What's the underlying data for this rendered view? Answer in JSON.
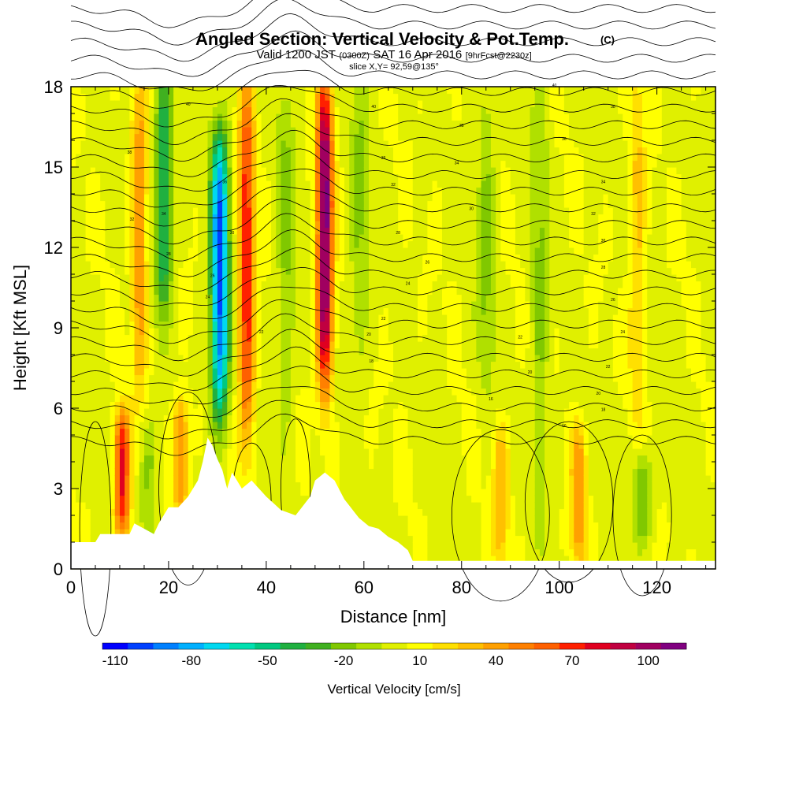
{
  "chart_data": {
    "type": "heatmap",
    "title": "Angled Section: Vertical Velocity & Pot.Temp.",
    "title_suffix": "(C)",
    "subtitle": {
      "valid": "Valid 1200 JST",
      "utc": "(0300Z)",
      "date": "SAT 16 Apr 2016",
      "fcst": "[9hrFcst@2230z]"
    },
    "slice": "slice X,Y= 92,59@135°",
    "xlabel": "Distance [nm]",
    "ylabel": "Height [Kft MSL]",
    "xlim": [
      0,
      132
    ],
    "ylim": [
      0,
      18
    ],
    "x_ticks": [
      "0",
      "20",
      "40",
      "60",
      "80",
      "100",
      "120"
    ],
    "y_ticks": [
      "0",
      "3",
      "6",
      "9",
      "12",
      "15",
      "18"
    ],
    "colorbar": {
      "label": "Vertical Velocity [cm/s]",
      "tick_labels": [
        "-110",
        "-80",
        "-50",
        "-20",
        "10",
        "40",
        "70",
        "100"
      ],
      "min": -115,
      "max": 115,
      "step": 10,
      "colors": [
        "#0000ff",
        "#0040ff",
        "#0080ff",
        "#00b0ff",
        "#00d8f0",
        "#00e0b0",
        "#00c880",
        "#20b040",
        "#40b020",
        "#80c800",
        "#b0e000",
        "#e0f000",
        "#ffff00",
        "#ffe000",
        "#ffc000",
        "#ffa000",
        "#ff8000",
        "#ff6000",
        "#ff2000",
        "#e00020",
        "#c00040",
        "#a00060",
        "#800080"
      ]
    },
    "updrafts": [
      {
        "x": 10.5,
        "z0": 1.5,
        "z1": 5.5,
        "value": 75
      },
      {
        "x": 14,
        "z0": 7,
        "z1": 18,
        "value": 40
      },
      {
        "x": 22.5,
        "z0": 2.5,
        "z1": 6,
        "value": 45
      },
      {
        "x": 36,
        "z0": 5,
        "z1": 18,
        "value": 70
      },
      {
        "x": 52,
        "z0": 7,
        "z1": 18,
        "value": 110
      },
      {
        "x": 88,
        "z0": 0.5,
        "z1": 5,
        "value": 30
      },
      {
        "x": 104,
        "z0": 0.5,
        "z1": 5,
        "value": 40
      },
      {
        "x": 116,
        "z0": 6,
        "z1": 18,
        "value": 25
      }
    ],
    "downdrafts": [
      {
        "x": 19,
        "z0": 10,
        "z1": 18,
        "value": -50
      },
      {
        "x": 30.5,
        "z0": 6,
        "z1": 16,
        "value": -100
      },
      {
        "x": 16,
        "z0": 1.5,
        "z1": 5,
        "value": -20
      },
      {
        "x": 44,
        "z0": 6,
        "z1": 18,
        "value": -20
      },
      {
        "x": 59,
        "z0": 8,
        "z1": 18,
        "value": -20
      },
      {
        "x": 85,
        "z0": 7,
        "z1": 18,
        "value": -20
      },
      {
        "x": 96,
        "z0": 3,
        "z1": 18,
        "value": -20
      },
      {
        "x": 117,
        "z0": 1.5,
        "z1": 4,
        "value": -30
      }
    ],
    "contour_labels": [
      {
        "x": 24,
        "z": 17.3,
        "text": "40"
      },
      {
        "x": 12,
        "z": 15.5,
        "text": "38"
      },
      {
        "x": 31.5,
        "z": 14.4,
        "text": "36"
      },
      {
        "x": 19,
        "z": 13.2,
        "text": "34"
      },
      {
        "x": 12.5,
        "z": 13.0,
        "text": "32"
      },
      {
        "x": 33,
        "z": 12.5,
        "text": "30"
      },
      {
        "x": 20,
        "z": 11.7,
        "text": "28"
      },
      {
        "x": 29,
        "z": 10.9,
        "text": "26"
      },
      {
        "x": 28,
        "z": 10.1,
        "text": "24"
      },
      {
        "x": 39,
        "z": 8.8,
        "text": "22"
      },
      {
        "x": 62,
        "z": 17.2,
        "text": "40"
      },
      {
        "x": 80,
        "z": 16.5,
        "text": "38"
      },
      {
        "x": 64,
        "z": 15.3,
        "text": "36"
      },
      {
        "x": 79,
        "z": 15.1,
        "text": "34"
      },
      {
        "x": 66,
        "z": 14.3,
        "text": "32"
      },
      {
        "x": 82,
        "z": 13.4,
        "text": "30"
      },
      {
        "x": 67,
        "z": 12.5,
        "text": "28"
      },
      {
        "x": 73,
        "z": 11.4,
        "text": "26"
      },
      {
        "x": 69,
        "z": 10.6,
        "text": "24"
      },
      {
        "x": 64,
        "z": 9.3,
        "text": "22"
      },
      {
        "x": 61,
        "z": 8.7,
        "text": "20"
      },
      {
        "x": 61.5,
        "z": 7.7,
        "text": "18"
      },
      {
        "x": 86,
        "z": 6.3,
        "text": "16"
      },
      {
        "x": 99,
        "z": 18.0,
        "text": "40"
      },
      {
        "x": 111,
        "z": 17.2,
        "text": "38"
      },
      {
        "x": 101,
        "z": 16.0,
        "text": "36"
      },
      {
        "x": 109,
        "z": 14.4,
        "text": "34"
      },
      {
        "x": 107,
        "z": 13.2,
        "text": "32"
      },
      {
        "x": 109,
        "z": 12.2,
        "text": "30"
      },
      {
        "x": 109,
        "z": 11.2,
        "text": "28"
      },
      {
        "x": 111,
        "z": 10.0,
        "text": "26"
      },
      {
        "x": 113,
        "z": 8.8,
        "text": "24"
      },
      {
        "x": 110,
        "z": 7.5,
        "text": "22"
      },
      {
        "x": 108,
        "z": 6.5,
        "text": "20"
      },
      {
        "x": 109,
        "z": 5.9,
        "text": "18"
      },
      {
        "x": 101,
        "z": 5.3,
        "text": "16"
      },
      {
        "x": 94,
        "z": 7.3,
        "text": "20"
      },
      {
        "x": 92,
        "z": 8.6,
        "text": "22"
      }
    ]
  },
  "colors": {
    "background": "#ffffff",
    "terrain": "#ffffff",
    "contour": "#000000"
  }
}
